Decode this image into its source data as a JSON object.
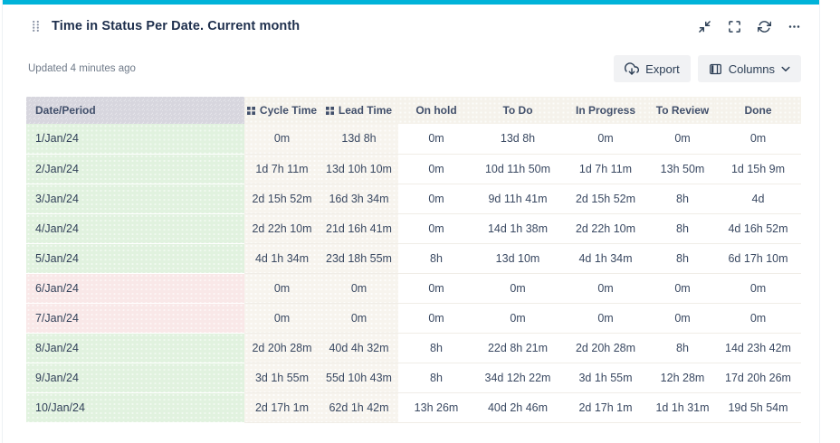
{
  "card": {
    "title": "Time in Status Per Date. Current month",
    "updated": "Updated 4 minutes ago"
  },
  "toolbar": {
    "export_label": "Export",
    "columns_label": "Columns"
  },
  "window_controls": {
    "collapse": "collapse",
    "fullscreen": "fullscreen",
    "refresh": "refresh",
    "more": "more"
  },
  "table": {
    "headers": [
      {
        "label": "Date/Period",
        "group_icon": false
      },
      {
        "label": "Cycle Time",
        "group_icon": true
      },
      {
        "label": "Lead Time",
        "group_icon": true
      },
      {
        "label": "On hold",
        "group_icon": false
      },
      {
        "label": "To Do",
        "group_icon": false
      },
      {
        "label": "In Progress",
        "group_icon": false
      },
      {
        "label": "To Review",
        "group_icon": false
      },
      {
        "label": "Done",
        "group_icon": false
      }
    ],
    "rows": [
      {
        "date": "1/Jan/24",
        "weekend": false,
        "values": [
          "0m",
          "13d 8h",
          "0m",
          "13d 8h",
          "0m",
          "0m",
          "0m"
        ]
      },
      {
        "date": "2/Jan/24",
        "weekend": false,
        "values": [
          "1d 7h 11m",
          "13d 10h 10m",
          "0m",
          "10d 11h 50m",
          "1d 7h 11m",
          "13h 50m",
          "1d 15h 9m"
        ]
      },
      {
        "date": "3/Jan/24",
        "weekend": false,
        "values": [
          "2d 15h 52m",
          "16d 3h 34m",
          "0m",
          "9d 11h 41m",
          "2d 15h 52m",
          "8h",
          "4d"
        ]
      },
      {
        "date": "4/Jan/24",
        "weekend": false,
        "values": [
          "2d 22h 10m",
          "21d 16h 41m",
          "0m",
          "14d 1h 38m",
          "2d 22h 10m",
          "8h",
          "4d 16h 52m"
        ]
      },
      {
        "date": "5/Jan/24",
        "weekend": false,
        "values": [
          "4d 1h 34m",
          "23d 18h 55m",
          "8h",
          "13d 10m",
          "4d 1h 34m",
          "8h",
          "6d 17h 10m"
        ]
      },
      {
        "date": "6/Jan/24",
        "weekend": true,
        "values": [
          "0m",
          "0m",
          "0m",
          "0m",
          "0m",
          "0m",
          "0m"
        ]
      },
      {
        "date": "7/Jan/24",
        "weekend": true,
        "values": [
          "0m",
          "0m",
          "0m",
          "0m",
          "0m",
          "0m",
          "0m"
        ]
      },
      {
        "date": "8/Jan/24",
        "weekend": false,
        "values": [
          "2d 20h 28m",
          "40d 4h 32m",
          "8h",
          "22d 8h 21m",
          "2d 20h 28m",
          "8h",
          "14d 23h 42m"
        ]
      },
      {
        "date": "9/Jan/24",
        "weekend": false,
        "values": [
          "3d 1h 55m",
          "55d 10h 43m",
          "8h",
          "34d 12h 22m",
          "3d 1h 55m",
          "12h 28m",
          "17d 20h 26m"
        ]
      },
      {
        "date": "10/Jan/24",
        "weekend": false,
        "values": [
          "2d 17h 1m",
          "62d 1h 42m",
          "13h 26m",
          "40d 2h 46m",
          "2d 17h 1m",
          "1d 1h 31m",
          "19d 5h 54m"
        ]
      }
    ]
  },
  "colors": {
    "accent": "#00b3d9",
    "weekday_date_bg": "#e1f2df",
    "weekend_date_bg": "#f9e8e8",
    "date_header_bg": "#d7d6de",
    "header_bg": "#f5f2eb",
    "time_columns_bg": "#f7f4ee",
    "text": "#3a4962"
  }
}
